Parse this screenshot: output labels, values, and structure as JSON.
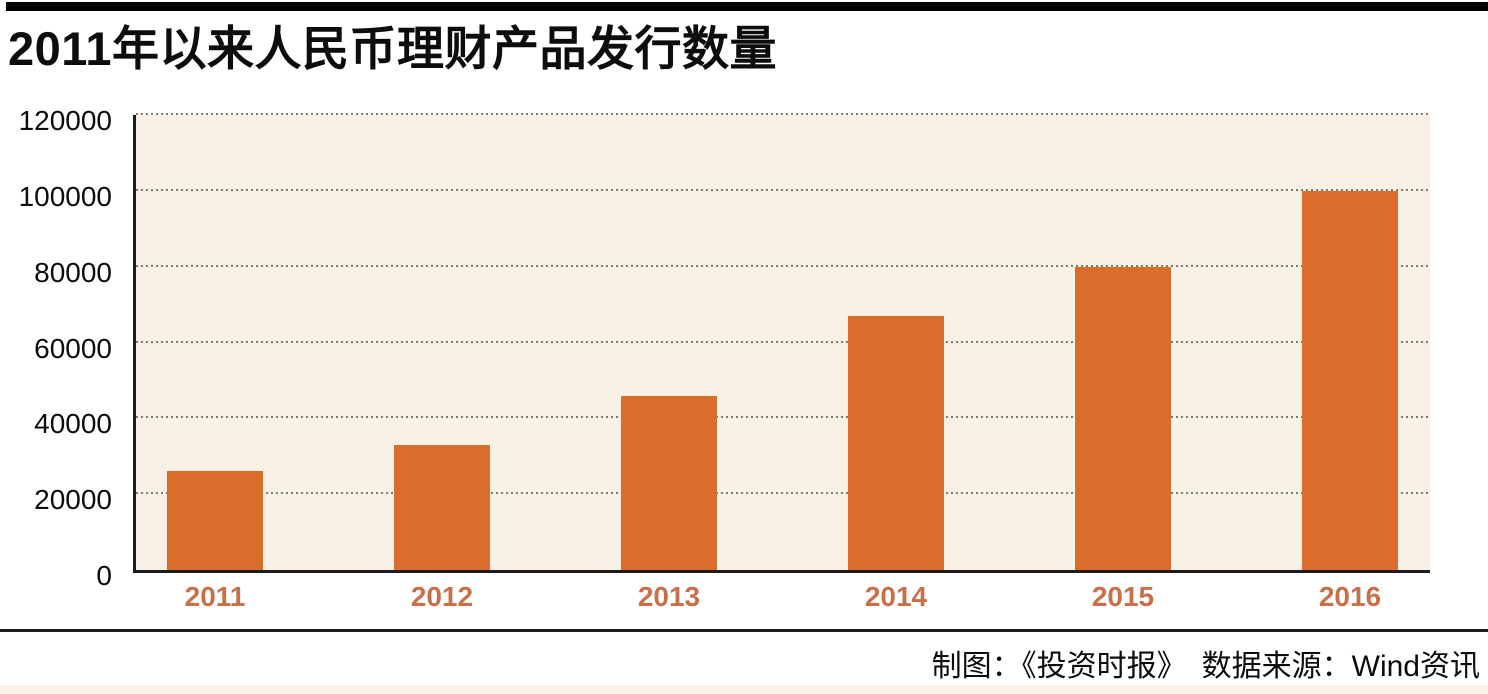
{
  "title": "2011年以来人民币理财产品发行数量",
  "footer": {
    "credit": "制图：《投资时报》　数据来源：Wind资讯"
  },
  "colors": {
    "bar": "#d96e2c",
    "plot_bg": "#faf1e6",
    "gridline": "#7d786f",
    "axis": "#1c1c1c",
    "year_label": "#c8704a",
    "top_bar": "#000000",
    "bottom_strip": "#fcf3e6",
    "text": "#0d0d0d"
  },
  "chart_data": {
    "type": "bar",
    "title": "2011年以来人民币理财产品发行数量",
    "categories": [
      "2011",
      "2012",
      "2013",
      "2014",
      "2015",
      "2016"
    ],
    "values": [
      26000,
      33000,
      46000,
      67000,
      80000,
      100000
    ],
    "xlabel": "",
    "ylabel": "",
    "ylim": [
      0,
      120000
    ],
    "yticks": [
      0,
      20000,
      40000,
      60000,
      80000,
      100000,
      120000
    ],
    "ytick_labels": [
      "0",
      "20000",
      "40000",
      "60000",
      "80000",
      "100000",
      "120000"
    ],
    "grid": "horizontal-dotted",
    "legend_position": "none"
  }
}
